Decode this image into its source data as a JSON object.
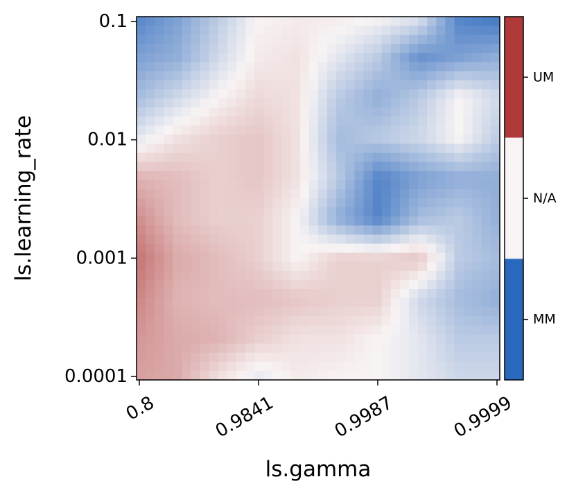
{
  "chart_data": {
    "type": "heatmap",
    "xlabel": "ls.gamma",
    "ylabel": "ls.learning_rate",
    "x_ticks": [
      "0.8",
      "0.9841",
      "0.9987",
      "0.9999"
    ],
    "y_ticks": [
      "0.1",
      "0.01",
      "0.001",
      "0.0001"
    ],
    "y_scale": "log",
    "colorbar": {
      "labels": [
        "UM",
        "N/A",
        "MM"
      ],
      "colors": [
        "#b03a3a",
        "#f8f4f4",
        "#2a68bd"
      ],
      "scale": [
        -1,
        1
      ]
    },
    "grid": [
      [
        -0.8,
        -0.6,
        -0.3,
        0.0,
        0.05,
        0.05,
        0.0,
        -0.1,
        -0.8,
        -0.9
      ],
      [
        -0.6,
        -0.5,
        -0.2,
        0.05,
        0.1,
        -0.1,
        -0.3,
        -0.7,
        -0.6,
        -0.5
      ],
      [
        -0.4,
        -0.2,
        0.0,
        0.15,
        0.1,
        -0.3,
        -0.5,
        -0.3,
        0.0,
        -0.2
      ],
      [
        -0.1,
        0.1,
        0.2,
        0.25,
        0.1,
        -0.4,
        -0.3,
        -0.2,
        0.0,
        -0.3
      ],
      [
        0.35,
        0.3,
        0.2,
        0.25,
        0.1,
        -0.3,
        -0.8,
        -0.6,
        -0.5,
        -0.5
      ],
      [
        0.55,
        0.3,
        0.2,
        0.2,
        0.0,
        -0.5,
        -0.8,
        -0.4,
        -0.3,
        -0.5
      ],
      [
        0.7,
        0.4,
        0.3,
        0.2,
        0.0,
        0.2,
        0.2,
        0.25,
        -0.3,
        -0.4
      ],
      [
        0.6,
        0.35,
        0.3,
        0.3,
        0.25,
        0.2,
        0.2,
        -0.2,
        -0.4,
        -0.5
      ],
      [
        0.5,
        0.4,
        0.35,
        0.2,
        0.1,
        0.1,
        0.0,
        -0.1,
        -0.3,
        -0.3
      ],
      [
        0.45,
        0.4,
        0.1,
        -0.1,
        0.05,
        0.0,
        0.0,
        -0.1,
        -0.2,
        -0.2
      ]
    ]
  }
}
